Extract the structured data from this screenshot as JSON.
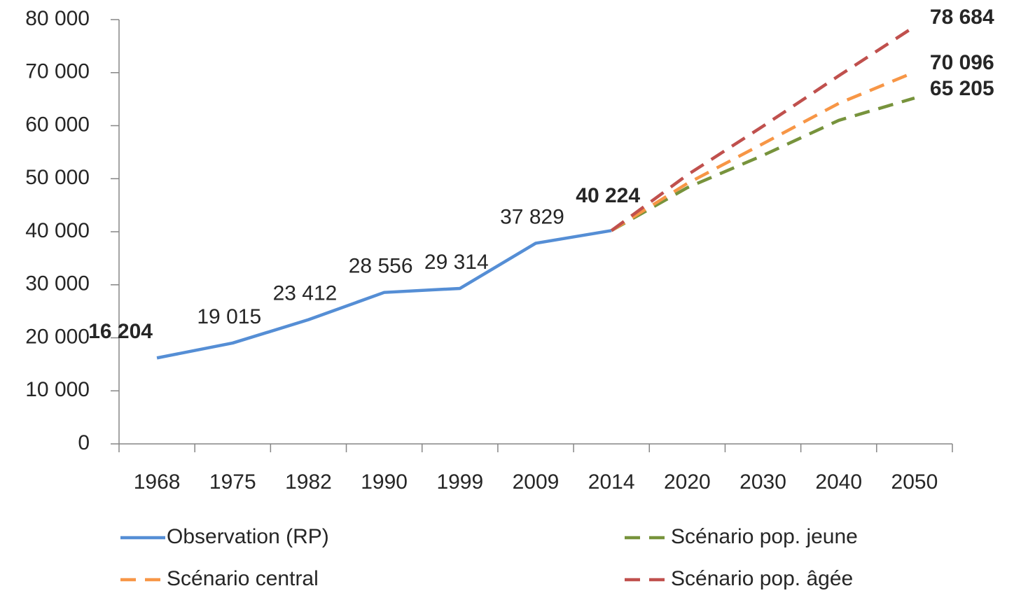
{
  "chart_data": {
    "type": "line",
    "categories": [
      "1968",
      "1975",
      "1982",
      "1990",
      "1999",
      "2009",
      "2014",
      "2020",
      "2030",
      "2040",
      "2050"
    ],
    "series": [
      {
        "name": "Observation (RP)",
        "color": "#558ed5",
        "dash": false,
        "values": [
          16204,
          19015,
          23412,
          28556,
          29314,
          37829,
          40224,
          null,
          null,
          null,
          null
        ],
        "value_labels": [
          "16 204",
          "19 015",
          "23 412",
          "28 556",
          "29 314",
          "37 829",
          "40 224",
          null,
          null,
          null,
          null
        ]
      },
      {
        "name": "Scénario pop. jeune",
        "color": "#77933c",
        "dash": true,
        "values": [
          null,
          null,
          null,
          null,
          null,
          null,
          40224,
          48300,
          54400,
          61000,
          65205
        ],
        "value_labels": [
          null,
          null,
          null,
          null,
          null,
          null,
          null,
          null,
          null,
          null,
          "65 205"
        ]
      },
      {
        "name": "Scénario central",
        "color": "#f79646",
        "dash": true,
        "values": [
          null,
          null,
          null,
          null,
          null,
          null,
          40224,
          49100,
          56600,
          64200,
          70096
        ],
        "value_labels": [
          null,
          null,
          null,
          null,
          null,
          null,
          null,
          null,
          null,
          null,
          "70 096"
        ]
      },
      {
        "name": "Scénario pop. âgée",
        "color": "#c0504d",
        "dash": true,
        "values": [
          null,
          null,
          null,
          null,
          null,
          null,
          40224,
          50700,
          59900,
          69400,
          78684
        ],
        "value_labels": [
          null,
          null,
          null,
          null,
          null,
          null,
          null,
          null,
          null,
          null,
          "78 684"
        ]
      }
    ],
    "ylim": [
      0,
      80000
    ],
    "yticks": [
      0,
      {
        "value": 10000,
        "label": "10 000"
      },
      {
        "value": 20000,
        "label": "20 000"
      },
      {
        "value": 30000,
        "label": "30 000"
      },
      {
        "value": 40000,
        "label": "40 000"
      },
      {
        "value": 50000,
        "label": "50 000"
      },
      {
        "value": 60000,
        "label": "60 000"
      },
      {
        "value": 70000,
        "label": "70 000"
      },
      {
        "value": 80000,
        "label": "80 000"
      }
    ],
    "grid": false
  }
}
